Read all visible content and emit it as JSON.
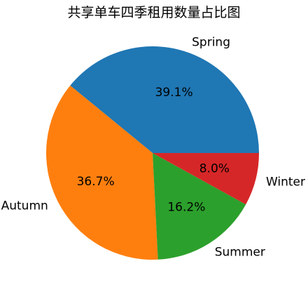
{
  "chart_data": {
    "type": "pie",
    "title": "共享单车四季租用数量占比图",
    "categories": [
      "Spring",
      "Autumn",
      "Summer",
      "Winter"
    ],
    "values": [
      39.1,
      36.7,
      16.2,
      8.0
    ],
    "percent_labels": [
      "39.1%",
      "36.7%",
      "16.2%",
      "8.0%"
    ],
    "colors": [
      "#1f77b4",
      "#ff7f0e",
      "#2ca02c",
      "#d62728"
    ],
    "start_angle": "0 degrees (3 o'clock), counter-clockwise",
    "legend": "none"
  }
}
